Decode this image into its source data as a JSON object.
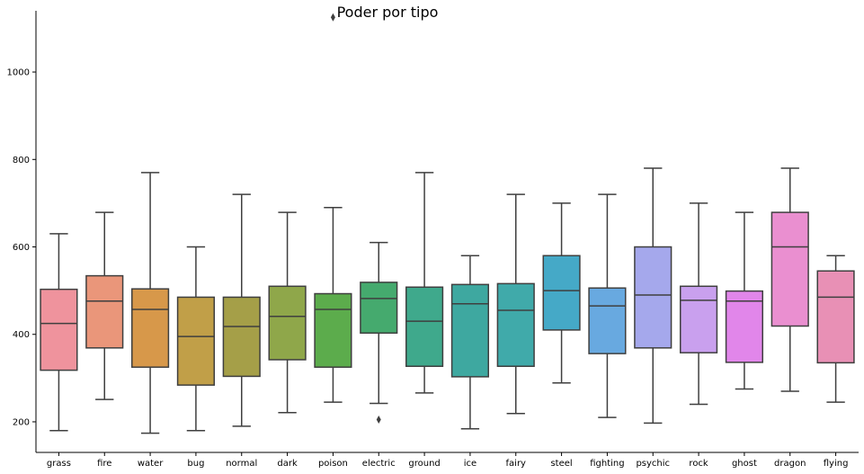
{
  "chart_data": {
    "type": "boxplot",
    "title": "Poder por tipo",
    "xlabel": "",
    "ylabel": "",
    "ylim": [
      130,
      1140
    ],
    "y_ticks": [
      200,
      400,
      600,
      800,
      1000
    ],
    "grid": false,
    "categories": [
      "grass",
      "fire",
      "water",
      "bug",
      "normal",
      "dark",
      "poison",
      "electric",
      "ground",
      "ice",
      "fairy",
      "steel",
      "fighting",
      "psychic",
      "rock",
      "ghost",
      "dragon",
      "flying"
    ],
    "boxes": [
      {
        "whisker_low": 180,
        "q1": 318,
        "median": 425,
        "q3": 503,
        "whisker_high": 630,
        "color": "#ef939d",
        "outliers": []
      },
      {
        "whisker_low": 251,
        "q1": 369,
        "median": 476,
        "q3": 534,
        "whisker_high": 679,
        "color": "#ea967a",
        "outliers": []
      },
      {
        "whisker_low": 174,
        "q1": 325,
        "median": 457,
        "q3": 504,
        "whisker_high": 770,
        "color": "#d7984a",
        "outliers": []
      },
      {
        "whisker_low": 180,
        "q1": 284,
        "median": 395,
        "q3": 485,
        "whisker_high": 600,
        "color": "#c19f48",
        "outliers": []
      },
      {
        "whisker_low": 190,
        "q1": 304,
        "median": 418,
        "q3": 485,
        "whisker_high": 720,
        "color": "#a59f48",
        "outliers": []
      },
      {
        "whisker_low": 221,
        "q1": 342,
        "median": 441,
        "q3": 510,
        "whisker_high": 679,
        "color": "#8fa74a",
        "outliers": []
      },
      {
        "whisker_low": 245,
        "q1": 325,
        "median": 457,
        "q3": 493,
        "whisker_high": 690,
        "color": "#5cac4c",
        "outliers": [
          1125
        ]
      },
      {
        "whisker_low": 242,
        "q1": 403,
        "median": 482,
        "q3": 519,
        "whisker_high": 610,
        "color": "#45aa6e",
        "outliers": [
          205
        ]
      },
      {
        "whisker_low": 266,
        "q1": 327,
        "median": 430,
        "q3": 508,
        "whisker_high": 770,
        "color": "#3fa98c",
        "outliers": []
      },
      {
        "whisker_low": 184,
        "q1": 303,
        "median": 470,
        "q3": 514,
        "whisker_high": 580,
        "color": "#3ea8a0",
        "outliers": []
      },
      {
        "whisker_low": 219,
        "q1": 327,
        "median": 455,
        "q3": 516,
        "whisker_high": 720,
        "color": "#40aaaa",
        "outliers": []
      },
      {
        "whisker_low": 289,
        "q1": 410,
        "median": 500,
        "q3": 580,
        "whisker_high": 700,
        "color": "#45a9c7",
        "outliers": []
      },
      {
        "whisker_low": 210,
        "q1": 356,
        "median": 465,
        "q3": 506,
        "whisker_high": 720,
        "color": "#68a9e0",
        "outliers": []
      },
      {
        "whisker_low": 197,
        "q1": 369,
        "median": 490,
        "q3": 600,
        "whisker_high": 780,
        "color": "#a5a8ec",
        "outliers": []
      },
      {
        "whisker_low": 240,
        "q1": 358,
        "median": 478,
        "q3": 510,
        "whisker_high": 700,
        "color": "#c9a0ee",
        "outliers": []
      },
      {
        "whisker_low": 275,
        "q1": 336,
        "median": 476,
        "q3": 499,
        "whisker_high": 679,
        "color": "#e186ea",
        "outliers": []
      },
      {
        "whisker_low": 270,
        "q1": 419,
        "median": 600,
        "q3": 679,
        "whisker_high": 780,
        "color": "#ea8fd0",
        "outliers": []
      },
      {
        "whisker_low": 245,
        "q1": 335,
        "median": 485,
        "q3": 545,
        "whisker_high": 580,
        "color": "#e890b5",
        "outliers": []
      }
    ]
  }
}
